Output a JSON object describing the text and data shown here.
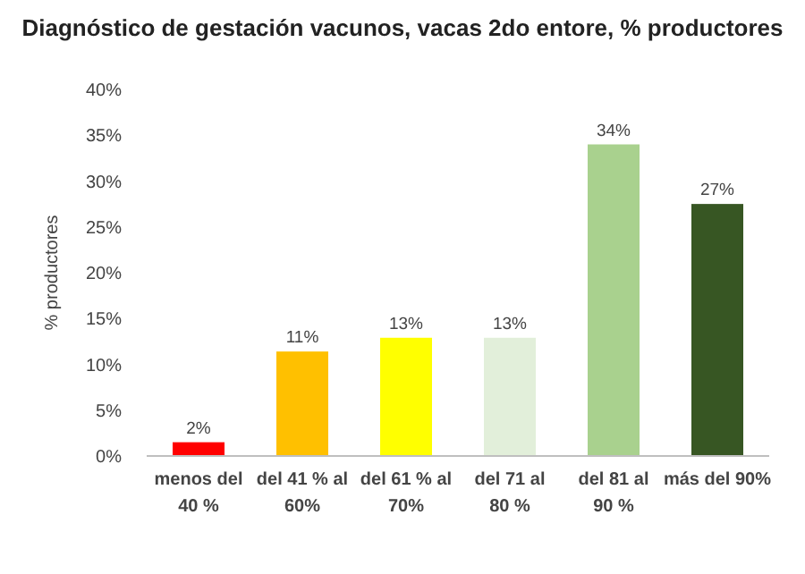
{
  "chart_data": {
    "type": "bar",
    "title": "Diagnóstico de gestación vacunos, vacas 2do entore, % productores",
    "ylabel": "% productores",
    "categories": [
      "menos del 40 %",
      "del 41 % al 60%",
      "del 61 % al 70%",
      "del 71 al 80 %",
      "del 81 al 90 %",
      "más del 90%"
    ],
    "values": [
      1.5,
      11.4,
      12.9,
      12.9,
      34,
      27.5
    ],
    "value_labels": [
      "2%",
      "11%",
      "13%",
      "13%",
      "34%",
      "27%"
    ],
    "colors": [
      "#ff0000",
      "#ffc000",
      "#ffff00",
      "#e2efda",
      "#a9d18e",
      "#375623"
    ],
    "ylim": [
      0,
      40
    ],
    "yticks": [
      {
        "value": 0,
        "label": "0%"
      },
      {
        "value": 5,
        "label": "5%"
      },
      {
        "value": 10,
        "label": "10%"
      },
      {
        "value": 15,
        "label": "15%"
      },
      {
        "value": 20,
        "label": "20%"
      },
      {
        "value": 25,
        "label": "25%"
      },
      {
        "value": 30,
        "label": "30%"
      },
      {
        "value": 35,
        "label": "35%"
      },
      {
        "value": 40,
        "label": "40%"
      }
    ],
    "grid": false
  }
}
